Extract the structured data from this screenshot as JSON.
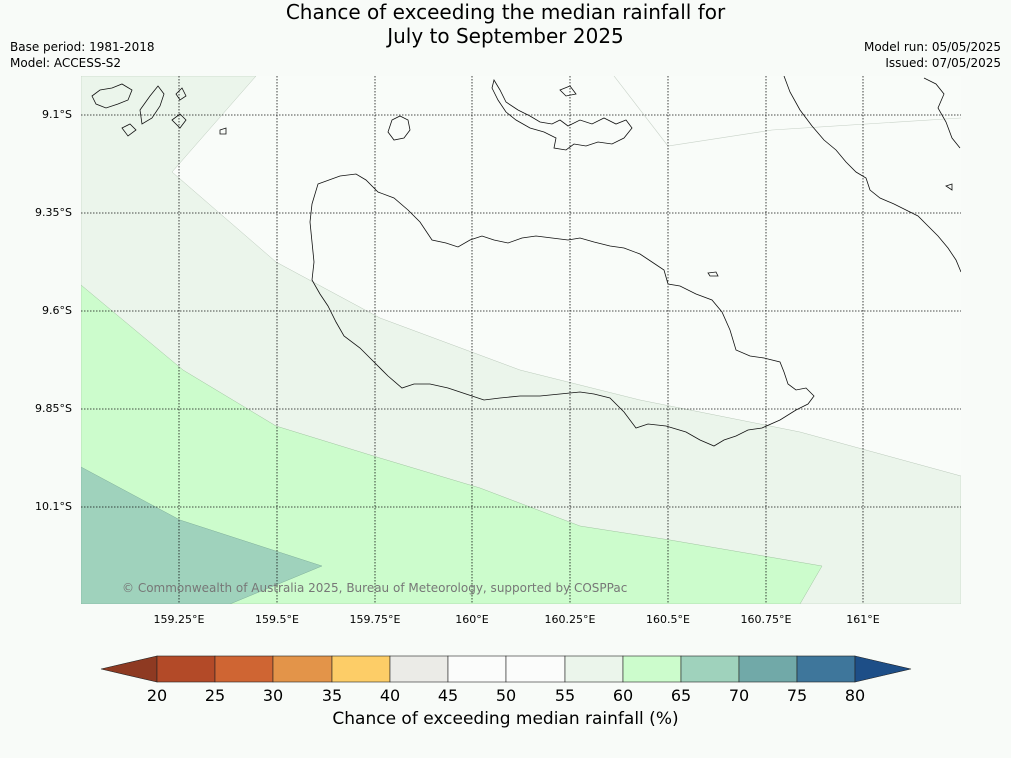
{
  "title": {
    "line1": "Chance of exceeding the median rainfall for",
    "line2": "July to September 2025"
  },
  "info_left": {
    "base_period": "Base period: 1981-2018",
    "model": "Model: ACCESS-S2"
  },
  "info_right": {
    "model_run": "Model run: 05/05/2025",
    "issued": "Issued: 07/05/2025"
  },
  "map": {
    "lat_labels": [
      "9.1°S",
      "9.35°S",
      "9.6°S",
      "9.85°S",
      "10.1°S"
    ],
    "lon_labels": [
      "159.25°E",
      "159.5°E",
      "159.75°E",
      "160°E",
      "160.25°E",
      "160.5°E",
      "160.75°E",
      "161°E"
    ],
    "credit": "© Commonwealth of Australia 2025, Bureau of Meteorology, supported by COSPPac",
    "gridlines": true,
    "zone_colors": {
      "background": "#f9fcf9",
      "55_60": "#ebf5eb",
      "60_65": "#ccfccc",
      "65_70": "#9fd2bc"
    }
  },
  "colorbar": {
    "title": "Chance of exceeding median rainfall (%)",
    "ticks": [
      "20",
      "25",
      "30",
      "35",
      "40",
      "45",
      "50",
      "55",
      "60",
      "65",
      "70",
      "75",
      "80"
    ],
    "under_color": "#8e3a22",
    "over_color": "#1d4e87",
    "colors": [
      "#b34a28",
      "#cf6533",
      "#e39449",
      "#fdcd67",
      "#ebebe7",
      "#fbfcfb",
      "#fbfcfb",
      "#ebf5eb",
      "#ccfccc",
      "#9fd2bc",
      "#71a9a8",
      "#3e769b"
    ]
  }
}
